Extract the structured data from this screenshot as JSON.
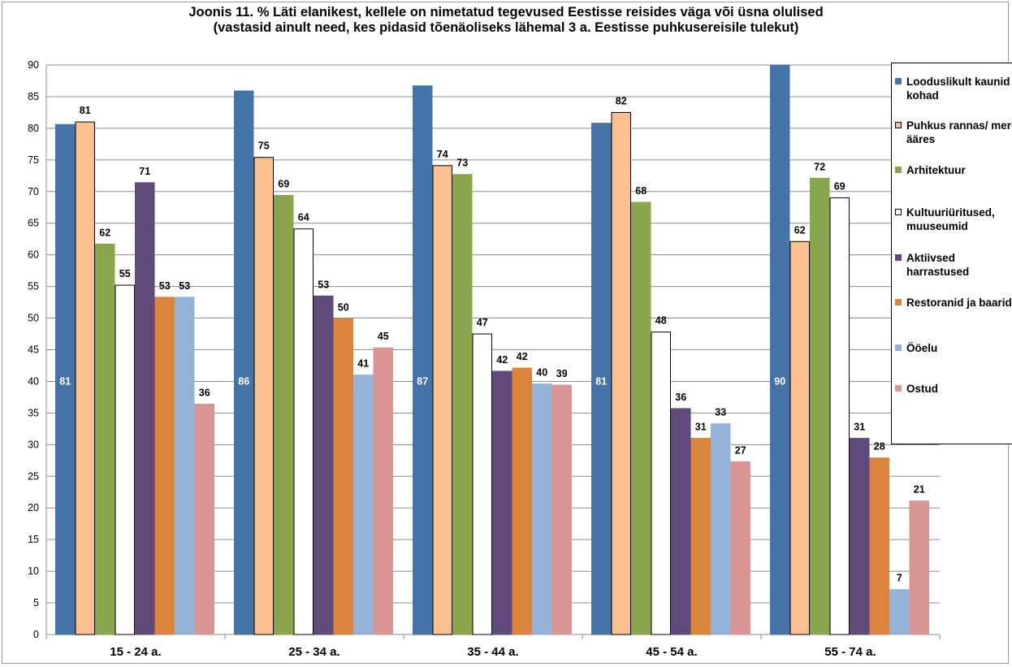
{
  "chart_data": {
    "type": "bar",
    "title": [
      "Joonis 11. % Läti elanikest, kellele on nimetatud tegevused Eestisse reisides väga või üsna olulised",
      "(vastasid ainult need, kes pidasid tõenäoliseks lähemal 3 a. Eestisse puhkusereisile tulekut)"
    ],
    "categories": [
      "15 - 24 a.",
      "25 - 34 a.",
      "35 - 44 a.",
      "45 - 54 a.",
      "55 - 74 a."
    ],
    "ylim": [
      0,
      90
    ],
    "yticks": [
      0,
      5,
      10,
      15,
      20,
      25,
      30,
      35,
      40,
      45,
      50,
      55,
      60,
      65,
      70,
      75,
      80,
      85,
      90
    ],
    "grid": true,
    "legend_position": "right",
    "series": [
      {
        "name": "Looduslikult kaunid kohad",
        "color": "#4572A7",
        "border": "#4572A7",
        "label_inside": true,
        "values": [
          80.6,
          85.9,
          86.7,
          80.8,
          90.0
        ],
        "labels": [
          "81",
          "86",
          "87",
          "81",
          "90"
        ]
      },
      {
        "name": "Puhkus rannas/ mere ääres",
        "color": "#FAC090",
        "border": "#000000",
        "values": [
          81.0,
          75.4,
          74.1,
          82.5,
          62.1
        ],
        "labels": [
          "81",
          "75",
          "74",
          "82",
          "62"
        ]
      },
      {
        "name": "Arhitektuur",
        "color": "#89A54E",
        "border": "#89A54E",
        "values": [
          61.7,
          69.4,
          72.7,
          68.3,
          72.1
        ],
        "labels": [
          "62",
          "69",
          "73",
          "68",
          "72"
        ]
      },
      {
        "name": "Kultuuriüritused, muuseumid",
        "color": "#FFFFFF",
        "border": "#000000",
        "values": [
          55.2,
          64.1,
          47.5,
          47.8,
          69.0
        ],
        "labels": [
          "55",
          "64",
          "47",
          "48",
          "69"
        ]
      },
      {
        "name": "Aktiivsed harrastused",
        "color": "#604A7B",
        "border": "#604A7B",
        "values": [
          71.4,
          53.5,
          41.6,
          35.7,
          31.0
        ],
        "labels": [
          "71",
          "53",
          "42",
          "36",
          "31"
        ]
      },
      {
        "name": "Restoranid ja baarid",
        "color": "#DB843D",
        "border": "#DB843D",
        "values": [
          53.3,
          49.9,
          42.1,
          31.0,
          27.9
        ],
        "labels": [
          "53",
          "50",
          "42",
          "31",
          "28"
        ]
      },
      {
        "name": "Ööelu",
        "color": "#95B3D7",
        "border": "#95B3D7",
        "values": [
          53.3,
          41.0,
          39.6,
          33.3,
          7.1
        ],
        "labels": [
          "53",
          "41",
          "40",
          "33",
          "7"
        ]
      },
      {
        "name": "Ostud",
        "color": "#D99694",
        "border": "#D99694",
        "values": [
          36.4,
          45.3,
          39.4,
          27.3,
          21.1
        ],
        "labels": [
          "36",
          "45",
          "39",
          "27",
          "21"
        ]
      }
    ]
  }
}
